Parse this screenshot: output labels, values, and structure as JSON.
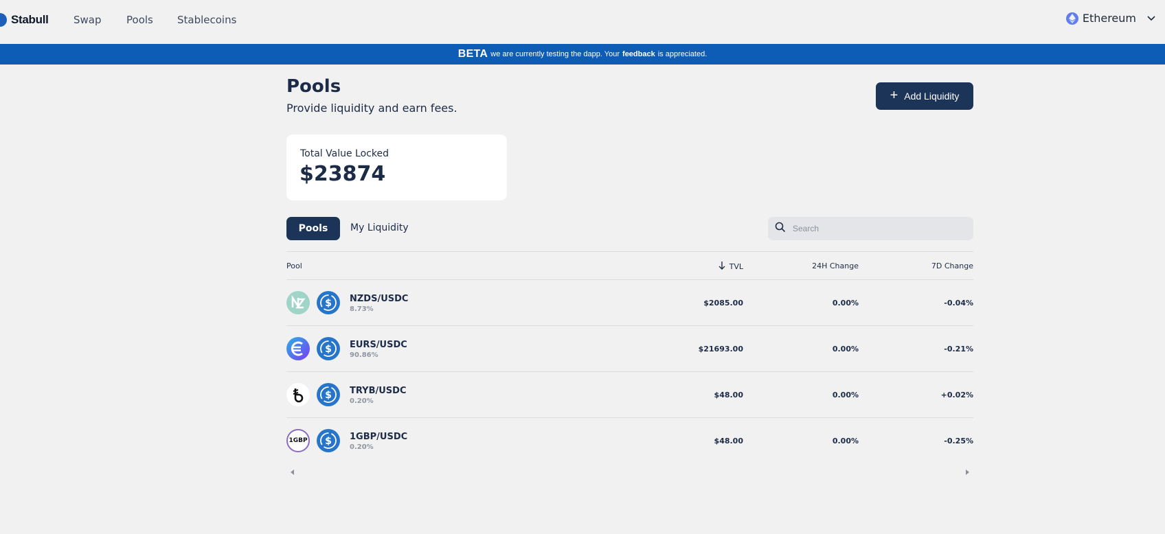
{
  "nav": {
    "brand": "Stabull",
    "links": [
      "Swap",
      "Pools",
      "Stablecoins"
    ],
    "network": "Ethereum"
  },
  "banner": {
    "tag": "BETA",
    "text_before": "we are currently testing the dapp. Your",
    "link": "feedback",
    "text_after": "is appreciated."
  },
  "header": {
    "title": "Pools",
    "subtitle": "Provide liquidity and earn fees.",
    "add_liquidity_label": "Add Liquidity"
  },
  "tvl_card": {
    "label": "Total Value Locked",
    "value": "$23874"
  },
  "tabs": {
    "pools": "Pools",
    "my_liquidity": "My Liquidity"
  },
  "search": {
    "placeholder": "Search"
  },
  "table": {
    "columns": {
      "pool": "Pool",
      "tvl": "TVL",
      "change_24h": "24H Change",
      "change_7d": "7D Change"
    },
    "rows": [
      {
        "pair": "NZDS/USDC",
        "share": "8.73%",
        "tvl": "$2085.00",
        "change_24h": "0.00%",
        "change_7d": "-0.04%",
        "token_icon": "nzds-icon"
      },
      {
        "pair": "EURS/USDC",
        "share": "90.86%",
        "tvl": "$21693.00",
        "change_24h": "0.00%",
        "change_7d": "-0.21%",
        "token_icon": "eurs-icon"
      },
      {
        "pair": "TRYB/USDC",
        "share": "0.20%",
        "tvl": "$48.00",
        "change_24h": "0.00%",
        "change_7d": "+0.02%",
        "token_icon": "tryb-icon"
      },
      {
        "pair": "1GBP/USDC",
        "share": "0.20%",
        "tvl": "$48.00",
        "change_24h": "0.00%",
        "change_7d": "-0.25%",
        "token_icon": "1gbp-icon",
        "token_text": "1GBP"
      }
    ],
    "quote_token_icon": "usdc-icon"
  },
  "colors": {
    "primary_dark": "#1c3458",
    "banner_blue": "#0d5cb6",
    "usdc_blue": "#2775ca",
    "background": "#f1f1f2"
  }
}
